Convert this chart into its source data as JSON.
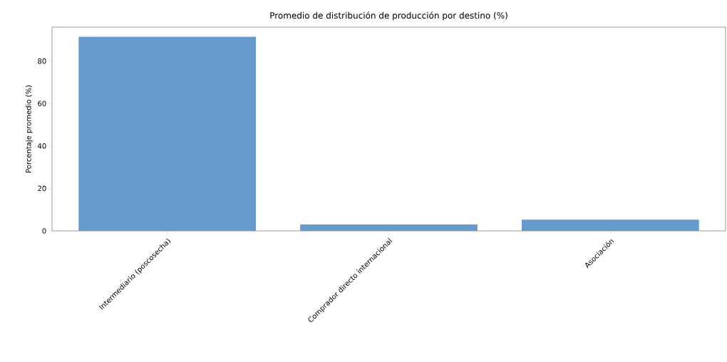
{
  "chart_data": {
    "type": "bar",
    "title": "Promedio de distribución de producción por destino (%)",
    "ylabel": "Porcentaje promedio (%)",
    "categories": [
      "Intermediario (poscosecha)",
      "Comprador directo internacional",
      "Asociación"
    ],
    "values": [
      91.5,
      3.0,
      5.3
    ],
    "color": "#6699cc",
    "ylim": [
      0,
      96
    ],
    "yticks": [
      0,
      20,
      40,
      60,
      80
    ],
    "grid": false
  }
}
